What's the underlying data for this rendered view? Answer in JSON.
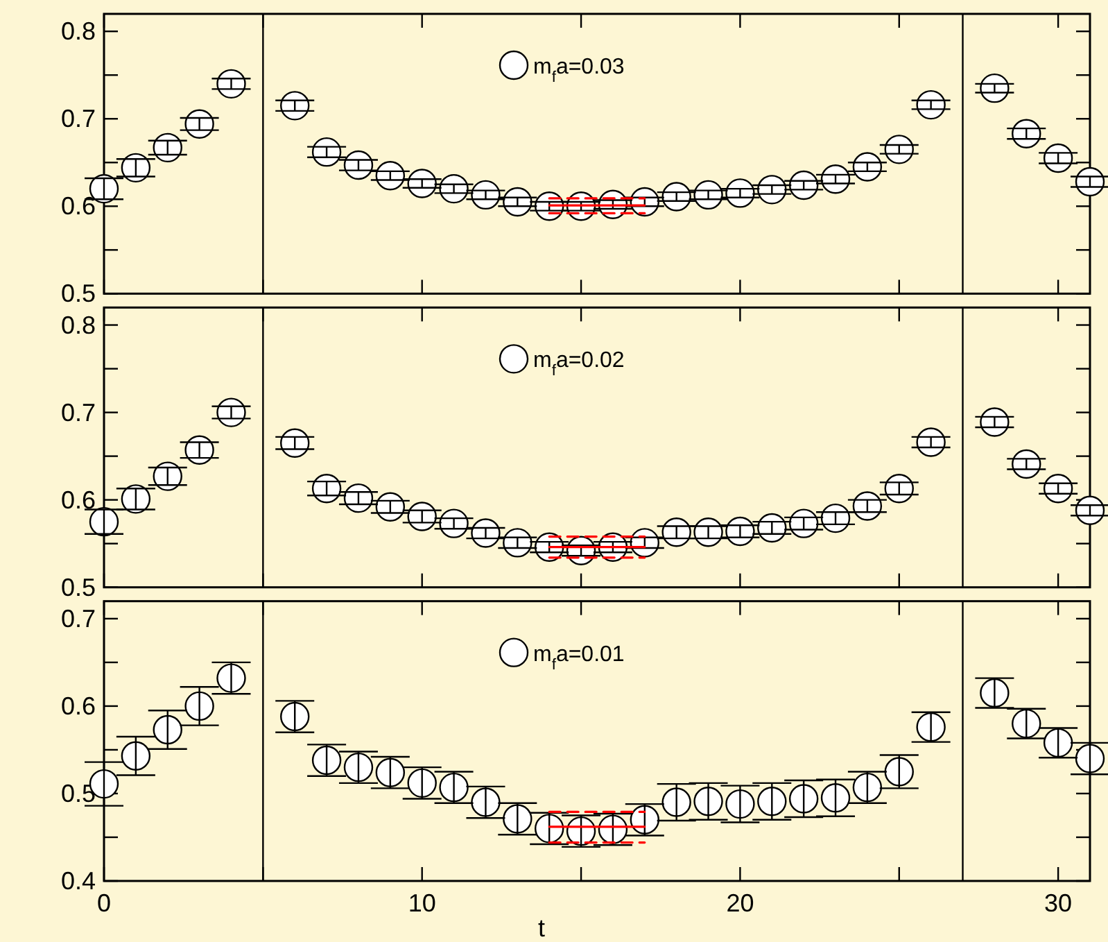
{
  "chart_data": [
    {
      "type": "scatter",
      "xlim": [
        0,
        31
      ],
      "xticks": [
        0,
        {
          "value": 5,
          "label": null
        },
        10,
        {
          "value": 15,
          "label": null
        },
        20,
        {
          "value": 25,
          "label": null
        },
        30
      ],
      "ylim": [
        0.5,
        0.82
      ],
      "yticks": [
        0.5,
        {
          "value": 0.55,
          "label": null
        },
        0.6,
        {
          "value": 0.65,
          "label": null
        },
        0.7,
        {
          "value": 0.75,
          "label": null
        },
        0.8
      ],
      "tick_labels": "y",
      "marker": "circle",
      "legend": "top",
      "x": [
        0,
        1,
        2,
        3,
        4,
        6,
        7,
        8,
        9,
        10,
        11,
        12,
        13,
        14,
        15,
        16,
        17,
        18,
        19,
        20,
        21,
        22,
        23,
        24,
        25,
        26,
        28,
        29,
        30,
        31
      ],
      "series": [
        {
          "name": "m$_{f}$a=0.03",
          "color": "#ffffff",
          "values": [
            0.62,
            0.644,
            0.667,
            0.694,
            0.74,
            0.715,
            0.662,
            0.647,
            0.635,
            0.626,
            0.62,
            0.613,
            0.605,
            0.6,
            0.6,
            0.602,
            0.605,
            0.611,
            0.613,
            0.615,
            0.619,
            0.624,
            0.631,
            0.645,
            0.665,
            0.716,
            0.735,
            0.683,
            0.655,
            0.628
          ],
          "errors": [
            0.012,
            0.01,
            0.008,
            0.007,
            0.006,
            0.006,
            0.006,
            0.006,
            0.005,
            0.005,
            0.005,
            0.005,
            0.005,
            0.005,
            0.005,
            0.005,
            0.005,
            0.005,
            0.005,
            0.005,
            0.005,
            0.005,
            0.005,
            0.005,
            0.005,
            0.005,
            0.005,
            0.006,
            0.006,
            0.006
          ]
        },
        {
          "type": "line",
          "color": "#ff0000",
          "marker": "none",
          "line_style": "solid",
          "values": [
            null,
            null,
            null,
            null,
            null,
            null,
            null,
            null,
            null,
            null,
            null,
            null,
            null,
            0.601,
            0.601,
            0.601,
            0.601,
            null,
            null,
            null,
            null,
            null,
            null,
            null,
            null,
            null,
            null,
            null,
            null,
            null
          ]
        },
        {
          "type": "line",
          "color": "#ff0000",
          "marker": "none",
          "line_style": "dashed",
          "values": [
            null,
            null,
            null,
            null,
            null,
            null,
            null,
            null,
            null,
            null,
            null,
            null,
            null,
            0.609,
            0.609,
            0.609,
            0.609,
            null,
            null,
            null,
            null,
            null,
            null,
            null,
            null,
            null,
            null,
            null,
            null,
            null
          ]
        },
        {
          "type": "line",
          "color": "#ff0000",
          "marker": "none",
          "line_style": "dashed",
          "values": [
            null,
            null,
            null,
            null,
            null,
            null,
            null,
            null,
            null,
            null,
            null,
            null,
            null,
            0.592,
            0.592,
            0.592,
            0.592,
            null,
            null,
            null,
            null,
            null,
            null,
            null,
            null,
            null,
            null,
            null,
            null,
            null
          ]
        }
      ],
      "ref_lines": [
        {
          "axis": "x",
          "value": 5
        },
        {
          "axis": "x",
          "value": 27
        }
      ]
    },
    {
      "type": "scatter",
      "xlim": [
        0,
        31
      ],
      "xticks": [
        0,
        {
          "value": 5,
          "label": null
        },
        10,
        {
          "value": 15,
          "label": null
        },
        20,
        {
          "value": 25,
          "label": null
        },
        30
      ],
      "ylim": [
        0.5,
        0.82
      ],
      "yticks": [
        0.5,
        {
          "value": 0.55,
          "label": null
        },
        0.6,
        {
          "value": 0.65,
          "label": null
        },
        0.7,
        {
          "value": 0.75,
          "label": null
        },
        0.8
      ],
      "tick_labels": "y",
      "marker": "circle",
      "legend": "top",
      "x": [
        0,
        1,
        2,
        3,
        4,
        6,
        7,
        8,
        9,
        10,
        11,
        12,
        13,
        14,
        15,
        16,
        17,
        18,
        19,
        20,
        21,
        22,
        23,
        24,
        25,
        26,
        28,
        29,
        30,
        31
      ],
      "series": [
        {
          "name": "m$_{f}$a=0.02",
          "color": "#ffffff",
          "values": [
            0.575,
            0.601,
            0.627,
            0.657,
            0.7,
            0.665,
            0.613,
            0.602,
            0.592,
            0.581,
            0.573,
            0.562,
            0.551,
            0.546,
            0.542,
            0.546,
            0.551,
            0.563,
            0.563,
            0.564,
            0.568,
            0.573,
            0.579,
            0.593,
            0.613,
            0.666,
            0.689,
            0.641,
            0.613,
            0.588
          ],
          "errors": [
            0.014,
            0.012,
            0.01,
            0.009,
            0.007,
            0.007,
            0.008,
            0.007,
            0.007,
            0.007,
            0.006,
            0.006,
            0.006,
            0.006,
            0.006,
            0.006,
            0.006,
            0.007,
            0.007,
            0.007,
            0.007,
            0.007,
            0.007,
            0.007,
            0.007,
            0.006,
            0.006,
            0.006,
            0.006,
            0.006
          ]
        },
        {
          "type": "line",
          "color": "#ff0000",
          "marker": "none",
          "line_style": "solid",
          "values": [
            null,
            null,
            null,
            null,
            null,
            null,
            null,
            null,
            null,
            null,
            null,
            null,
            null,
            0.546,
            0.546,
            0.546,
            0.546,
            null,
            null,
            null,
            null,
            null,
            null,
            null,
            null,
            null,
            null,
            null,
            null,
            null
          ]
        },
        {
          "type": "line",
          "color": "#ff0000",
          "marker": "none",
          "line_style": "dashed",
          "values": [
            null,
            null,
            null,
            null,
            null,
            null,
            null,
            null,
            null,
            null,
            null,
            null,
            null,
            0.558,
            0.558,
            0.558,
            0.558,
            null,
            null,
            null,
            null,
            null,
            null,
            null,
            null,
            null,
            null,
            null,
            null,
            null
          ]
        },
        {
          "type": "line",
          "color": "#ff0000",
          "marker": "none",
          "line_style": "dashed",
          "values": [
            null,
            null,
            null,
            null,
            null,
            null,
            null,
            null,
            null,
            null,
            null,
            null,
            null,
            0.534,
            0.534,
            0.534,
            0.534,
            null,
            null,
            null,
            null,
            null,
            null,
            null,
            null,
            null,
            null,
            null,
            null,
            null
          ]
        }
      ],
      "ref_lines": [
        {
          "axis": "x",
          "value": 5
        },
        {
          "axis": "x",
          "value": 27
        }
      ]
    },
    {
      "type": "scatter",
      "xlabel": "t",
      "xlim": [
        0,
        31
      ],
      "xticks": [
        0,
        {
          "value": 5,
          "label": null
        },
        10,
        {
          "value": 15,
          "label": null
        },
        20,
        {
          "value": 25,
          "label": null
        },
        30
      ],
      "ylim": [
        0.4,
        0.72
      ],
      "yticks": [
        0.4,
        {
          "value": 0.45,
          "label": null
        },
        0.5,
        {
          "value": 0.55,
          "label": null
        },
        0.6,
        {
          "value": 0.65,
          "label": null
        },
        0.7
      ],
      "marker": "circle",
      "legend": "top",
      "x": [
        0,
        1,
        2,
        3,
        4,
        6,
        7,
        8,
        9,
        10,
        11,
        12,
        13,
        14,
        15,
        16,
        17,
        18,
        19,
        20,
        21,
        22,
        23,
        24,
        25,
        26,
        28,
        29,
        30,
        31
      ],
      "series": [
        {
          "name": "m$_{f}$a=0.01",
          "color": "#ffffff",
          "values": [
            0.511,
            0.543,
            0.573,
            0.6,
            0.632,
            0.588,
            0.538,
            0.53,
            0.524,
            0.512,
            0.507,
            0.49,
            0.471,
            0.46,
            0.457,
            0.459,
            0.47,
            0.49,
            0.491,
            0.488,
            0.491,
            0.494,
            0.495,
            0.507,
            0.525,
            0.576,
            0.615,
            0.58,
            0.558,
            0.54
          ],
          "errors": [
            0.025,
            0.022,
            0.022,
            0.022,
            0.018,
            0.018,
            0.018,
            0.018,
            0.018,
            0.018,
            0.018,
            0.018,
            0.018,
            0.018,
            0.018,
            0.018,
            0.018,
            0.021,
            0.021,
            0.021,
            0.021,
            0.021,
            0.021,
            0.018,
            0.019,
            0.017,
            0.017,
            0.017,
            0.017,
            0.018
          ]
        },
        {
          "type": "line",
          "color": "#ff0000",
          "marker": "none",
          "line_style": "solid",
          "values": [
            null,
            null,
            null,
            null,
            null,
            null,
            null,
            null,
            null,
            null,
            null,
            null,
            null,
            0.462,
            0.462,
            0.462,
            0.462,
            null,
            null,
            null,
            null,
            null,
            null,
            null,
            null,
            null,
            null,
            null,
            null,
            null
          ]
        },
        {
          "type": "line",
          "color": "#ff0000",
          "marker": "none",
          "line_style": "dashed",
          "values": [
            null,
            null,
            null,
            null,
            null,
            null,
            null,
            null,
            null,
            null,
            null,
            null,
            null,
            0.479,
            0.479,
            0.479,
            0.479,
            null,
            null,
            null,
            null,
            null,
            null,
            null,
            null,
            null,
            null,
            null,
            null,
            null
          ]
        },
        {
          "type": "line",
          "color": "#ff0000",
          "marker": "none",
          "line_style": "dashed",
          "values": [
            null,
            null,
            null,
            null,
            null,
            null,
            null,
            null,
            null,
            null,
            null,
            null,
            null,
            0.444,
            0.444,
            0.444,
            0.444,
            null,
            null,
            null,
            null,
            null,
            null,
            null,
            null,
            null,
            null,
            null,
            null,
            null
          ]
        }
      ],
      "ref_lines": [
        {
          "axis": "x",
          "value": 5
        },
        {
          "axis": "x",
          "value": 27
        }
      ]
    }
  ]
}
